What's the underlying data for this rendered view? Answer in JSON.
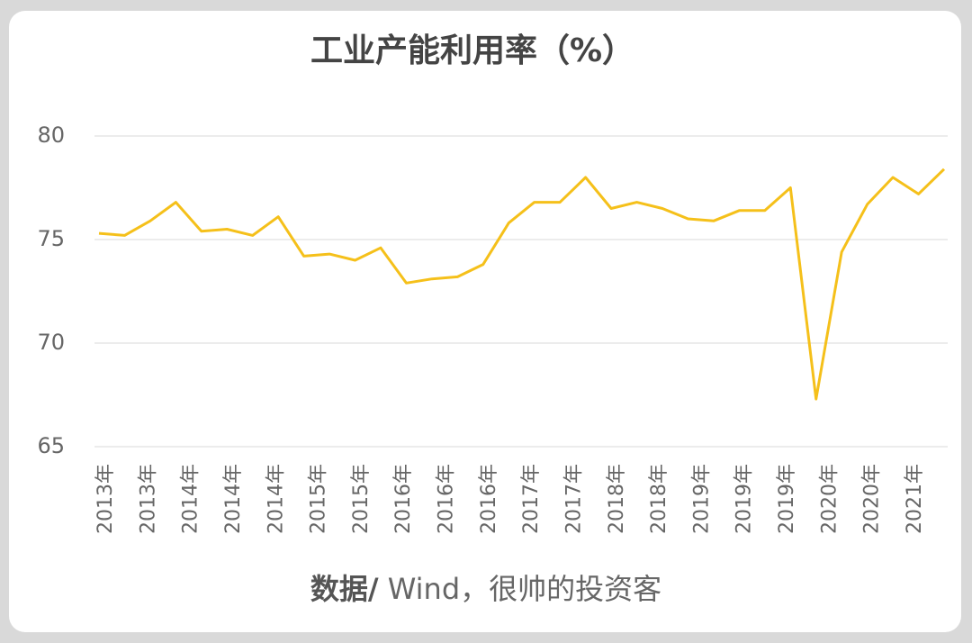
{
  "chart_data": {
    "type": "line",
    "title": "工业产能利用率（%）",
    "x_labels": [
      "2013年",
      "2013年",
      "2014年",
      "2014年",
      "2014年",
      "2015年",
      "2015年",
      "2016年",
      "2016年",
      "2016年",
      "2017年",
      "2017年",
      "2018年",
      "2018年",
      "2019年",
      "2019年",
      "2019年",
      "2020年",
      "2020年",
      "2021年"
    ],
    "values": [
      75.3,
      75.2,
      75.9,
      76.8,
      75.4,
      75.5,
      75.2,
      76.1,
      74.2,
      74.3,
      74.0,
      74.6,
      72.9,
      73.1,
      73.2,
      73.8,
      75.8,
      76.8,
      76.8,
      78.0,
      76.5,
      76.8,
      76.5,
      76.0,
      75.9,
      76.4,
      76.4,
      77.5,
      67.3,
      74.4,
      76.7,
      78.0,
      77.2,
      78.4
    ],
    "color": "#f5c01a",
    "ylim": [
      65,
      80
    ],
    "yticks": [
      65,
      70,
      75,
      80
    ],
    "grid": true
  },
  "source": {
    "prefix": "数据/",
    "text": " Wind，很帅的投资客"
  }
}
